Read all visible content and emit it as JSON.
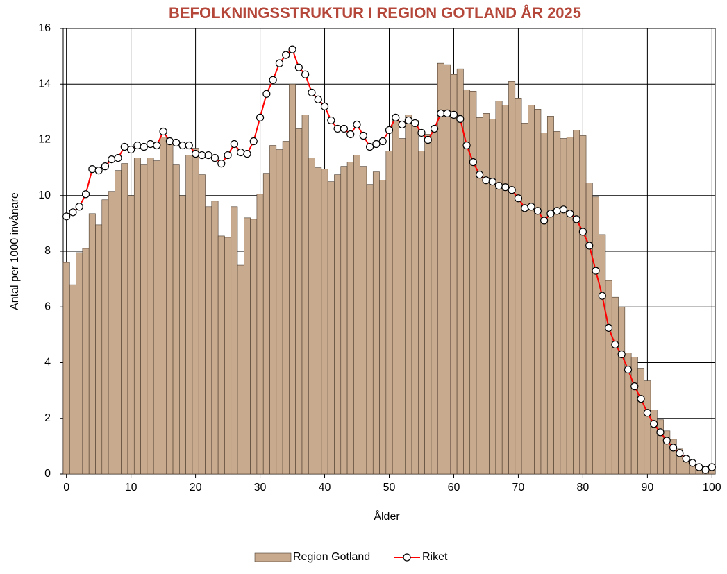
{
  "chart_data": {
    "type": "bar-line",
    "title": "BEFOLKNINGSSTRUKTUR I REGION GOTLAND ÅR 2025",
    "x_label": "Ålder",
    "y_label": "Antal per 1000 invånare",
    "x": [
      0,
      1,
      2,
      3,
      4,
      5,
      6,
      7,
      8,
      9,
      10,
      11,
      12,
      13,
      14,
      15,
      16,
      17,
      18,
      19,
      20,
      21,
      22,
      23,
      24,
      25,
      26,
      27,
      28,
      29,
      30,
      31,
      32,
      33,
      34,
      35,
      36,
      37,
      38,
      39,
      40,
      41,
      42,
      43,
      44,
      45,
      46,
      47,
      48,
      49,
      50,
      51,
      52,
      53,
      54,
      55,
      56,
      57,
      58,
      59,
      60,
      61,
      62,
      63,
      64,
      65,
      66,
      67,
      68,
      69,
      70,
      71,
      72,
      73,
      74,
      75,
      76,
      77,
      78,
      79,
      80,
      81,
      82,
      83,
      84,
      85,
      86,
      87,
      88,
      89,
      90,
      91,
      92,
      93,
      94,
      95,
      96,
      97,
      98,
      99,
      100
    ],
    "series": [
      {
        "name": "Region Gotland",
        "type": "bar",
        "color": "#c8aa8e",
        "values": [
          7.6,
          6.8,
          7.95,
          8.1,
          9.35,
          8.95,
          9.85,
          10.15,
          10.9,
          11.15,
          10.0,
          11.35,
          11.1,
          11.35,
          11.25,
          12.1,
          11.85,
          11.1,
          10.0,
          11.45,
          11.7,
          10.75,
          9.6,
          9.8,
          8.55,
          8.5,
          9.6,
          7.5,
          9.2,
          9.15,
          10.05,
          10.8,
          11.8,
          11.65,
          11.95,
          14.0,
          12.4,
          12.9,
          11.35,
          11.0,
          10.95,
          10.5,
          10.75,
          11.05,
          11.2,
          11.45,
          11.05,
          10.4,
          10.85,
          10.55,
          11.6,
          12.85,
          12.05,
          12.9,
          12.7,
          11.6,
          12.2,
          12.5,
          14.75,
          14.7,
          14.35,
          14.55,
          13.8,
          13.75,
          12.8,
          12.95,
          12.75,
          13.4,
          13.25,
          14.1,
          13.5,
          12.6,
          13.25,
          13.1,
          12.25,
          12.85,
          12.3,
          12.05,
          12.1,
          12.35,
          12.15,
          10.45,
          9.95,
          8.6,
          6.95,
          6.35,
          6.0,
          4.35,
          4.2,
          3.8,
          3.35,
          2.3,
          1.95,
          1.55,
          1.25,
          0.9,
          0.6,
          0.45,
          0.3,
          0.2,
          0.2
        ]
      },
      {
        "name": "Riket",
        "type": "line",
        "color": "#ff0000",
        "values": [
          9.25,
          9.4,
          9.6,
          10.05,
          10.95,
          10.9,
          11.05,
          11.3,
          11.35,
          11.75,
          11.65,
          11.8,
          11.75,
          11.85,
          11.8,
          12.3,
          11.95,
          11.9,
          11.8,
          11.8,
          11.5,
          11.45,
          11.45,
          11.35,
          11.15,
          11.45,
          11.85,
          11.55,
          11.5,
          11.95,
          12.8,
          13.65,
          14.15,
          14.75,
          15.05,
          15.25,
          14.6,
          14.35,
          13.7,
          13.45,
          13.2,
          12.7,
          12.4,
          12.4,
          12.2,
          12.55,
          12.15,
          11.75,
          11.85,
          11.95,
          12.35,
          12.8,
          12.55,
          12.7,
          12.6,
          12.25,
          12.0,
          12.4,
          12.95,
          12.95,
          12.9,
          12.75,
          11.8,
          11.2,
          10.75,
          10.55,
          10.5,
          10.35,
          10.3,
          10.2,
          9.9,
          9.55,
          9.6,
          9.45,
          9.1,
          9.35,
          9.45,
          9.5,
          9.35,
          9.15,
          8.7,
          8.2,
          7.3,
          6.4,
          5.25,
          4.65,
          4.3,
          3.75,
          3.15,
          2.7,
          2.2,
          1.8,
          1.5,
          1.2,
          0.95,
          0.75,
          0.55,
          0.4,
          0.25,
          0.15,
          0.25
        ]
      }
    ],
    "xlim": [
      -0.5,
      100.5
    ],
    "xticks": [
      0,
      10,
      20,
      30,
      40,
      50,
      60,
      70,
      80,
      90,
      100
    ],
    "ylim": [
      0,
      16
    ],
    "yticks": [
      0,
      2,
      4,
      6,
      8,
      10,
      12,
      14,
      16
    ],
    "grid": true,
    "legend": "bottom"
  }
}
